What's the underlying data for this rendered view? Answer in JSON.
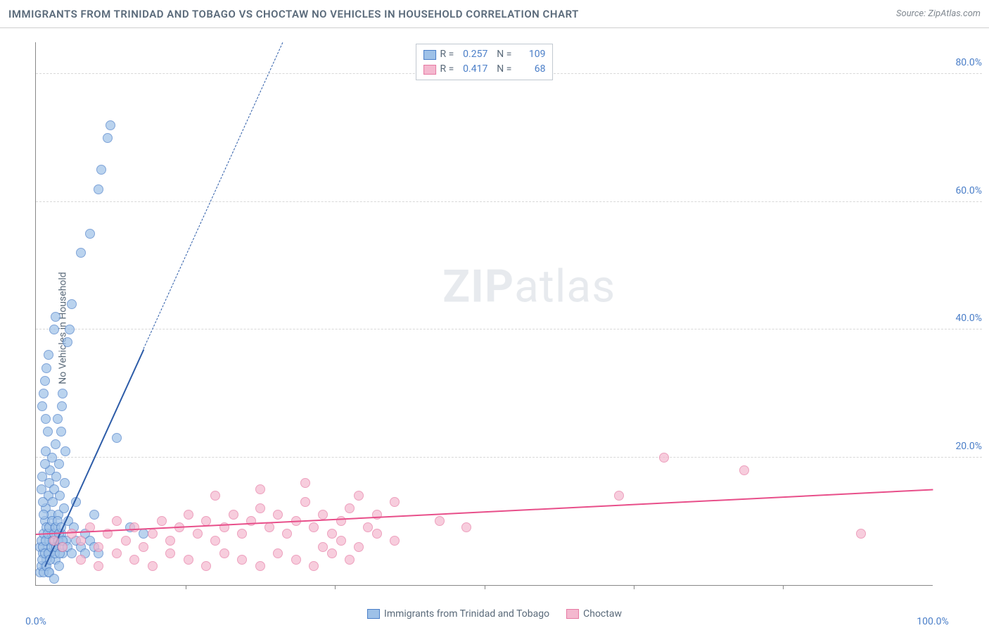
{
  "header": {
    "title": "IMMIGRANTS FROM TRINIDAD AND TOBAGO VS CHOCTAW NO VEHICLES IN HOUSEHOLD CORRELATION CHART",
    "source": "Source: ZipAtlas.com"
  },
  "watermark": {
    "zip": "ZIP",
    "atlas": "atlas"
  },
  "y_axis": {
    "label": "No Vehicles in Household"
  },
  "chart": {
    "type": "scatter",
    "background_color": "#ffffff",
    "grid_color": "#d8d8d8",
    "axis_color": "#888888",
    "xlim": [
      0,
      100
    ],
    "ylim": [
      0,
      85
    ],
    "yticks": [
      {
        "value": 20,
        "label": "20.0%"
      },
      {
        "value": 40,
        "label": "40.0%"
      },
      {
        "value": 60,
        "label": "60.0%"
      },
      {
        "value": 80,
        "label": "80.0%"
      }
    ],
    "xticks_major": [
      16.67,
      33.33,
      50,
      66.67,
      83.33
    ],
    "xlabel_left": {
      "value": 0,
      "label": "0.0%"
    },
    "xlabel_right": {
      "value": 100,
      "label": "100.0%"
    },
    "marker_radius": 7,
    "marker_fill_opacity": 0.35,
    "marker_stroke_width": 1.2,
    "series": [
      {
        "name": "Immigrants from Trinidad and Tobago",
        "color_stroke": "#4a7ec8",
        "color_fill": "#9ec1e8",
        "R": "0.257",
        "N": "109",
        "trend": {
          "x1": 1,
          "y1": 3,
          "x2": 12,
          "y2": 37,
          "dash_extend_to_y": 85,
          "color": "#2d5ca8"
        },
        "points": [
          [
            0.5,
            6
          ],
          [
            0.6,
            7
          ],
          [
            0.8,
            5
          ],
          [
            0.9,
            8
          ],
          [
            1.0,
            3
          ],
          [
            1.0,
            10
          ],
          [
            1.1,
            12
          ],
          [
            1.2,
            4
          ],
          [
            1.2,
            9
          ],
          [
            1.3,
            6
          ],
          [
            1.4,
            14
          ],
          [
            1.4,
            2
          ],
          [
            1.5,
            7
          ],
          [
            1.5,
            16
          ],
          [
            1.6,
            5
          ],
          [
            1.6,
            18
          ],
          [
            1.7,
            11
          ],
          [
            1.8,
            8
          ],
          [
            1.8,
            20
          ],
          [
            1.9,
            13
          ],
          [
            2.0,
            6
          ],
          [
            2.0,
            15
          ],
          [
            2.1,
            9
          ],
          [
            2.2,
            22
          ],
          [
            2.2,
            4
          ],
          [
            2.3,
            17
          ],
          [
            2.4,
            7
          ],
          [
            2.4,
            26
          ],
          [
            2.5,
            11
          ],
          [
            2.6,
            19
          ],
          [
            2.6,
            3
          ],
          [
            2.7,
            14
          ],
          [
            2.8,
            24
          ],
          [
            2.8,
            8
          ],
          [
            2.9,
            28
          ],
          [
            3.0,
            5
          ],
          [
            3.0,
            30
          ],
          [
            3.1,
            12
          ],
          [
            3.2,
            16
          ],
          [
            3.3,
            21
          ],
          [
            3.4,
            7
          ],
          [
            3.5,
            38
          ],
          [
            3.6,
            10
          ],
          [
            3.8,
            40
          ],
          [
            4.0,
            44
          ],
          [
            4.2,
            9
          ],
          [
            4.5,
            13
          ],
          [
            5.0,
            52
          ],
          [
            5.5,
            8
          ],
          [
            6.0,
            55
          ],
          [
            6.5,
            11
          ],
          [
            7.0,
            62
          ],
          [
            7.3,
            65
          ],
          [
            8.0,
            70
          ],
          [
            8.3,
            72
          ],
          [
            9.0,
            23
          ],
          [
            10.5,
            9
          ],
          [
            1.0,
            32
          ],
          [
            1.2,
            34
          ],
          [
            1.4,
            36
          ],
          [
            0.7,
            28
          ],
          [
            0.9,
            30
          ],
          [
            1.1,
            26
          ],
          [
            1.3,
            24
          ],
          [
            0.6,
            15
          ],
          [
            0.7,
            17
          ],
          [
            0.8,
            13
          ],
          [
            0.9,
            11
          ],
          [
            1.0,
            19
          ],
          [
            1.1,
            21
          ],
          [
            12.0,
            8
          ],
          [
            2.0,
            40
          ],
          [
            2.2,
            42
          ],
          [
            0.5,
            2
          ],
          [
            0.6,
            3
          ],
          [
            0.7,
            4
          ],
          [
            0.8,
            6
          ],
          [
            0.9,
            2
          ],
          [
            1.0,
            5
          ],
          [
            1.1,
            7
          ],
          [
            1.2,
            3
          ],
          [
            1.3,
            8
          ],
          [
            1.4,
            5
          ],
          [
            1.5,
            9
          ],
          [
            1.6,
            4
          ],
          [
            1.7,
            6
          ],
          [
            1.8,
            10
          ],
          [
            1.9,
            7
          ],
          [
            2.0,
            8
          ],
          [
            2.1,
            5
          ],
          [
            2.2,
            9
          ],
          [
            2.3,
            6
          ],
          [
            2.4,
            10
          ],
          [
            2.5,
            7
          ],
          [
            2.6,
            8
          ],
          [
            2.7,
            5
          ],
          [
            2.8,
            9
          ],
          [
            2.9,
            6
          ],
          [
            3.0,
            7
          ],
          [
            3.5,
            6
          ],
          [
            4.0,
            5
          ],
          [
            4.5,
            7
          ],
          [
            5.0,
            6
          ],
          [
            5.5,
            5
          ],
          [
            6.0,
            7
          ],
          [
            6.5,
            6
          ],
          [
            7.0,
            5
          ],
          [
            1.5,
            2
          ],
          [
            2.0,
            1
          ]
        ]
      },
      {
        "name": "Choctaw",
        "color_stroke": "#e67aa3",
        "color_fill": "#f4b8cf",
        "R": "0.417",
        "N": "68",
        "trend": {
          "x1": 0,
          "y1": 8,
          "x2": 100,
          "y2": 15,
          "color": "#e84f8a"
        },
        "points": [
          [
            2,
            7
          ],
          [
            3,
            6
          ],
          [
            4,
            8
          ],
          [
            5,
            7
          ],
          [
            6,
            9
          ],
          [
            7,
            6
          ],
          [
            8,
            8
          ],
          [
            9,
            10
          ],
          [
            10,
            7
          ],
          [
            11,
            9
          ],
          [
            12,
            6
          ],
          [
            13,
            8
          ],
          [
            14,
            10
          ],
          [
            15,
            7
          ],
          [
            16,
            9
          ],
          [
            17,
            11
          ],
          [
            18,
            8
          ],
          [
            19,
            10
          ],
          [
            20,
            7
          ],
          [
            21,
            9
          ],
          [
            22,
            11
          ],
          [
            23,
            8
          ],
          [
            24,
            10
          ],
          [
            25,
            12
          ],
          [
            26,
            9
          ],
          [
            27,
            11
          ],
          [
            28,
            8
          ],
          [
            29,
            10
          ],
          [
            30,
            13
          ],
          [
            31,
            9
          ],
          [
            32,
            11
          ],
          [
            33,
            8
          ],
          [
            34,
            10
          ],
          [
            35,
            12
          ],
          [
            36,
            14
          ],
          [
            37,
            9
          ],
          [
            38,
            11
          ],
          [
            40,
            13
          ],
          [
            5,
            4
          ],
          [
            7,
            3
          ],
          [
            9,
            5
          ],
          [
            11,
            4
          ],
          [
            13,
            3
          ],
          [
            15,
            5
          ],
          [
            17,
            4
          ],
          [
            19,
            3
          ],
          [
            21,
            5
          ],
          [
            23,
            4
          ],
          [
            25,
            3
          ],
          [
            27,
            5
          ],
          [
            29,
            4
          ],
          [
            31,
            3
          ],
          [
            33,
            5
          ],
          [
            35,
            4
          ],
          [
            20,
            14
          ],
          [
            25,
            15
          ],
          [
            30,
            16
          ],
          [
            32,
            6
          ],
          [
            34,
            7
          ],
          [
            36,
            6
          ],
          [
            38,
            8
          ],
          [
            40,
            7
          ],
          [
            65,
            14
          ],
          [
            70,
            20
          ],
          [
            79,
            18
          ],
          [
            92,
            8
          ],
          [
            45,
            10
          ],
          [
            48,
            9
          ]
        ]
      }
    ]
  },
  "legend_bottom": {
    "items": [
      {
        "label": "Immigrants from Trinidad and Tobago",
        "fill": "#9ec1e8",
        "stroke": "#4a7ec8"
      },
      {
        "label": "Choctaw",
        "fill": "#f4b8cf",
        "stroke": "#e67aa3"
      }
    ]
  }
}
